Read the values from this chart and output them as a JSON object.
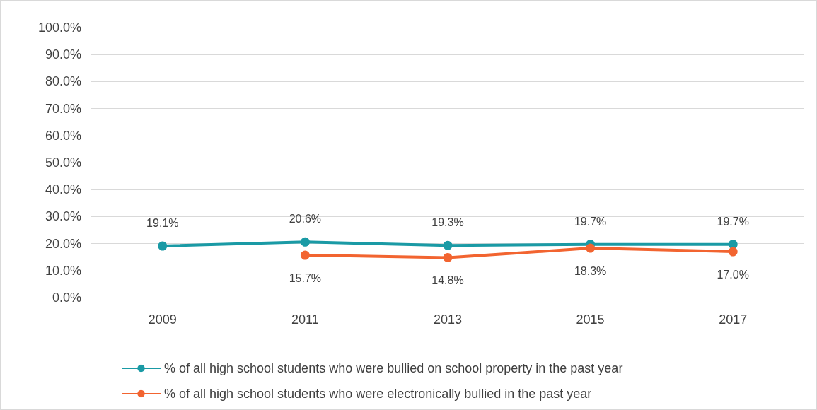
{
  "chart_data": {
    "type": "line",
    "categories": [
      "2009",
      "2011",
      "2013",
      "2015",
      "2017"
    ],
    "series": [
      {
        "name": "% of all high school students who were bullied on school property in the past year",
        "color": "#1a9aa5",
        "values": [
          19.1,
          20.6,
          19.3,
          19.7,
          19.7
        ],
        "value_labels": [
          "19.1%",
          "20.6%",
          "19.3%",
          "19.7%",
          "19.7%"
        ]
      },
      {
        "name": "% of all high school students who were electronically bullied in the past year",
        "color": "#f26430",
        "values": [
          null,
          15.7,
          14.8,
          18.3,
          17.0
        ],
        "value_labels": [
          null,
          "15.7%",
          "14.8%",
          "18.3%",
          "17.0%"
        ]
      }
    ],
    "ylim": [
      0,
      100
    ],
    "yticks": [
      {
        "value": 0,
        "label": "0.0%"
      },
      {
        "value": 10,
        "label": "10.0%"
      },
      {
        "value": 20,
        "label": "20.0%"
      },
      {
        "value": 30,
        "label": "30.0%"
      },
      {
        "value": 40,
        "label": "40.0%"
      },
      {
        "value": 50,
        "label": "50.0%"
      },
      {
        "value": 60,
        "label": "60.0%"
      },
      {
        "value": 70,
        "label": "70.0%"
      },
      {
        "value": 80,
        "label": "80.0%"
      },
      {
        "value": 90,
        "label": "90.0%"
      },
      {
        "value": 100,
        "label": "100.0%"
      }
    ],
    "grid": "y",
    "legend": "bottom",
    "marker": "circle"
  }
}
